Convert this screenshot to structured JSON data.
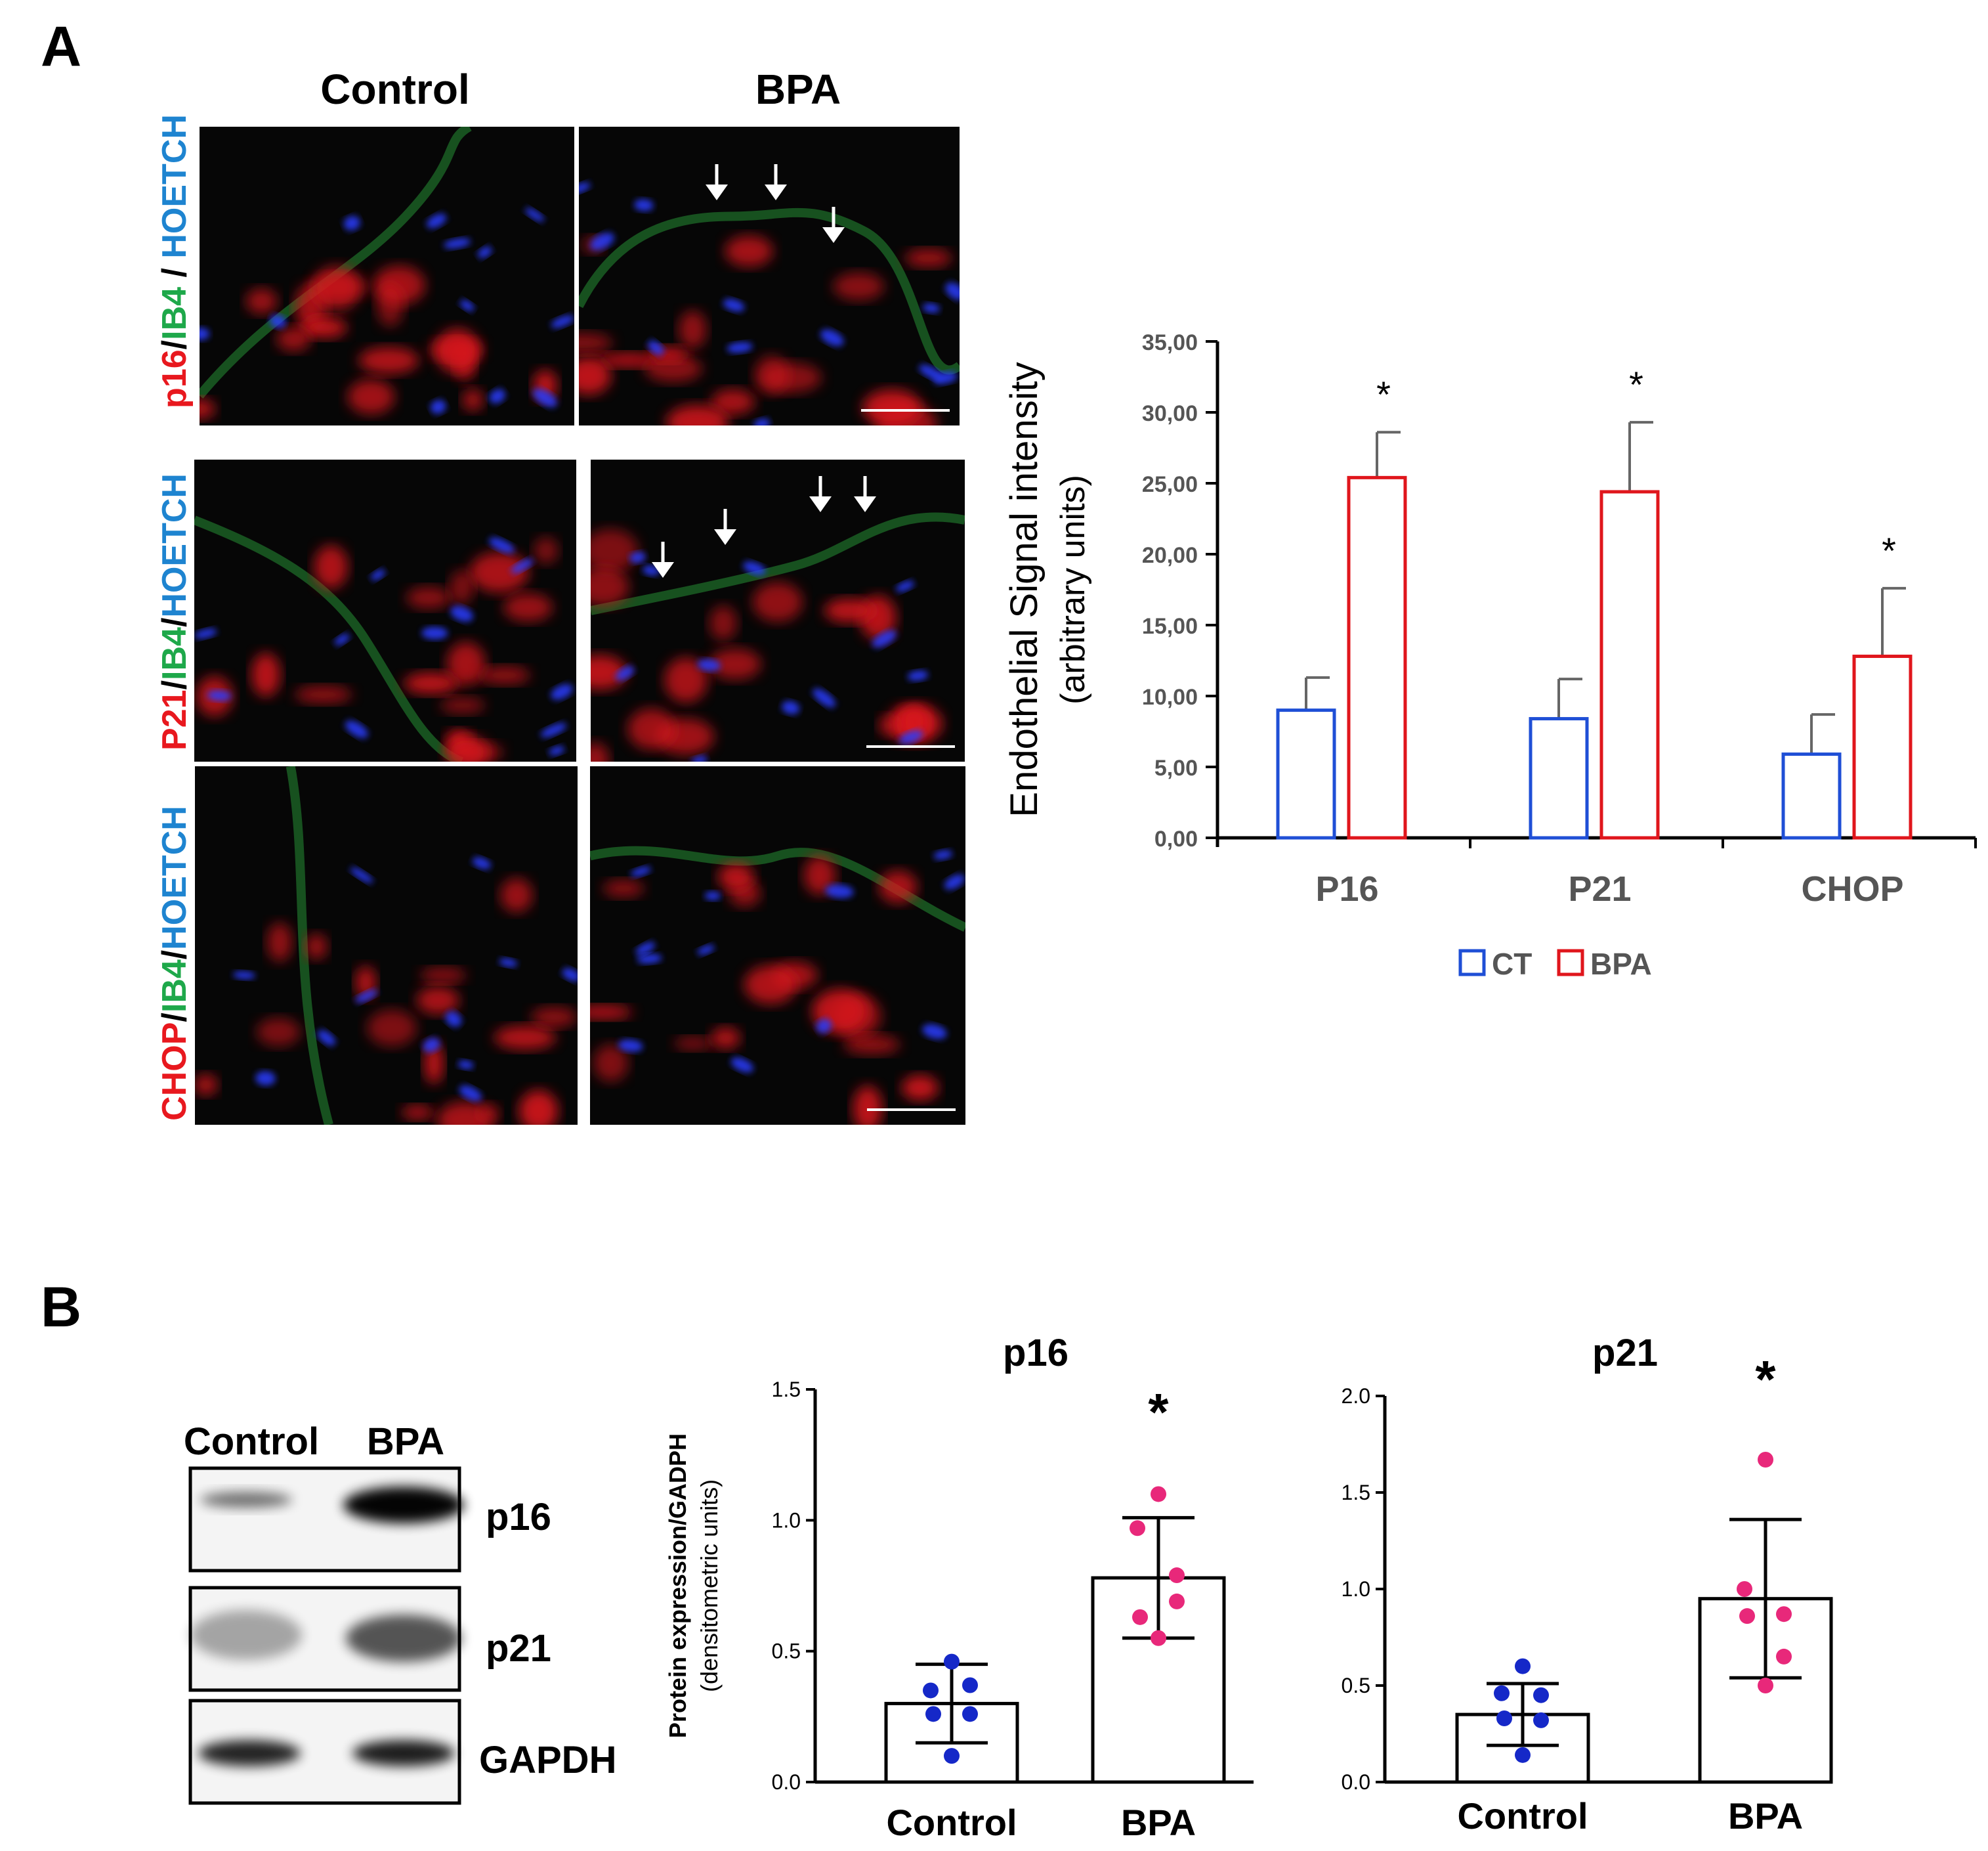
{
  "panel_a": {
    "letter": "A",
    "col_headers": [
      "Control",
      "BPA"
    ],
    "row_labels": [
      [
        {
          "t": "p16",
          "c": "#e8181e"
        },
        {
          "t": "/",
          "c": "#000000"
        },
        {
          "t": "IB4",
          "c": "#1ea84a"
        },
        {
          "t": " / ",
          "c": "#000000"
        },
        {
          "t": "HOETCH",
          "c": "#1e84d0"
        }
      ],
      [
        {
          "t": "P21",
          "c": "#e8181e"
        },
        {
          "t": "/",
          "c": "#000000"
        },
        {
          "t": "IB4",
          "c": "#1ea84a"
        },
        {
          "t": "/",
          "c": "#000000"
        },
        {
          "t": "HOETCH",
          "c": "#1e84d0"
        }
      ],
      [
        {
          "t": "CHOP",
          "c": "#e8181e"
        },
        {
          "t": "/",
          "c": "#000000"
        },
        {
          "t": "IB4",
          "c": "#1ea84a"
        },
        {
          "t": "/",
          "c": "#000000"
        },
        {
          "t": "HOETCH",
          "c": "#1e84d0"
        }
      ]
    ]
  },
  "panel_b": {
    "letter": "B",
    "blot_cols": [
      "Control",
      "BPA"
    ],
    "blot_rows": [
      "p16",
      "p21",
      "GAPDH"
    ]
  },
  "chart_data": [
    {
      "type": "bar",
      "ylabel_bold": "Endothelial Signal intensity",
      "ylabel_sub": "(arbitrary units)",
      "categories": [
        "P16",
        "P21",
        "CHOP"
      ],
      "series": [
        {
          "name": "CT",
          "color": "#1f4fd6",
          "values": [
            9.0,
            8.4,
            5.9
          ],
          "err": [
            2.3,
            2.8,
            2.8
          ]
        },
        {
          "name": "BPA",
          "color": "#e0161c",
          "values": [
            25.4,
            24.4,
            12.8
          ],
          "err": [
            3.2,
            4.9,
            4.8
          ]
        }
      ],
      "significance": [
        "*",
        "*",
        "*"
      ],
      "yticks": [
        "0,00",
        "5,00",
        "10,00",
        "15,00",
        "20,00",
        "25,00",
        "30,00",
        "35,00"
      ],
      "ylim": [
        0,
        35
      ],
      "legend": "bottom"
    },
    {
      "type": "bar",
      "title": "p16",
      "ylabel_bold": "Protein expression/GADPH",
      "ylabel_sub": "(densitometric units)",
      "categories": [
        "Control",
        "BPA"
      ],
      "values": [
        0.3,
        0.78
      ],
      "sd": [
        0.15,
        0.23
      ],
      "points": [
        [
          0.46,
          0.35,
          0.37,
          0.26,
          0.26,
          0.1
        ],
        [
          1.1,
          0.97,
          0.69,
          0.63,
          0.79,
          0.55
        ]
      ],
      "point_colors": [
        "#1528c8",
        "#e8287a"
      ],
      "significance": "*",
      "yticks": [
        "0.0",
        "0.5",
        "1.0",
        "1.5"
      ],
      "ylim": [
        0,
        1.5
      ]
    },
    {
      "type": "bar",
      "title": "p21",
      "categories": [
        "Control",
        "BPA"
      ],
      "values": [
        0.35,
        0.95
      ],
      "sd": [
        0.16,
        0.41
      ],
      "points": [
        [
          0.6,
          0.46,
          0.45,
          0.33,
          0.32,
          0.14
        ],
        [
          1.67,
          1.0,
          0.87,
          0.86,
          0.65,
          0.5
        ]
      ],
      "point_colors": [
        "#1528c8",
        "#e8287a"
      ],
      "significance": "*",
      "yticks": [
        "0.0",
        "0.5",
        "1.0",
        "1.5",
        "2.0"
      ],
      "ylim": [
        0,
        2.0
      ]
    }
  ]
}
